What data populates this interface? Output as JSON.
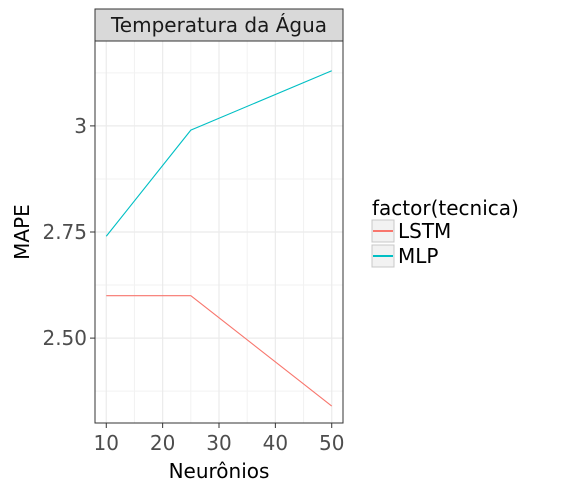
{
  "chart_data": {
    "type": "line",
    "facet_title": "Temperatura da Água",
    "xlabel": "Neurônios",
    "ylabel": "MAPE",
    "x": [
      10,
      25,
      50
    ],
    "xlim": [
      8,
      52
    ],
    "ylim": [
      2.3,
      3.2
    ],
    "x_ticks": [
      10,
      20,
      30,
      40,
      50
    ],
    "x_tick_labels": [
      "10",
      "20",
      "30",
      "40",
      "50"
    ],
    "y_ticks": [
      2.5,
      2.75,
      3.0
    ],
    "y_tick_labels": [
      "2.50",
      "2.75",
      "3"
    ],
    "grid": true,
    "legend_title": "factor(tecnica)",
    "legend_position": "right",
    "series": [
      {
        "name": "LSTM",
        "color": "#F8766D",
        "values": [
          2.6,
          2.6,
          2.34
        ]
      },
      {
        "name": "MLP",
        "color": "#00BFC4",
        "values": [
          2.74,
          2.99,
          3.13
        ]
      }
    ]
  }
}
